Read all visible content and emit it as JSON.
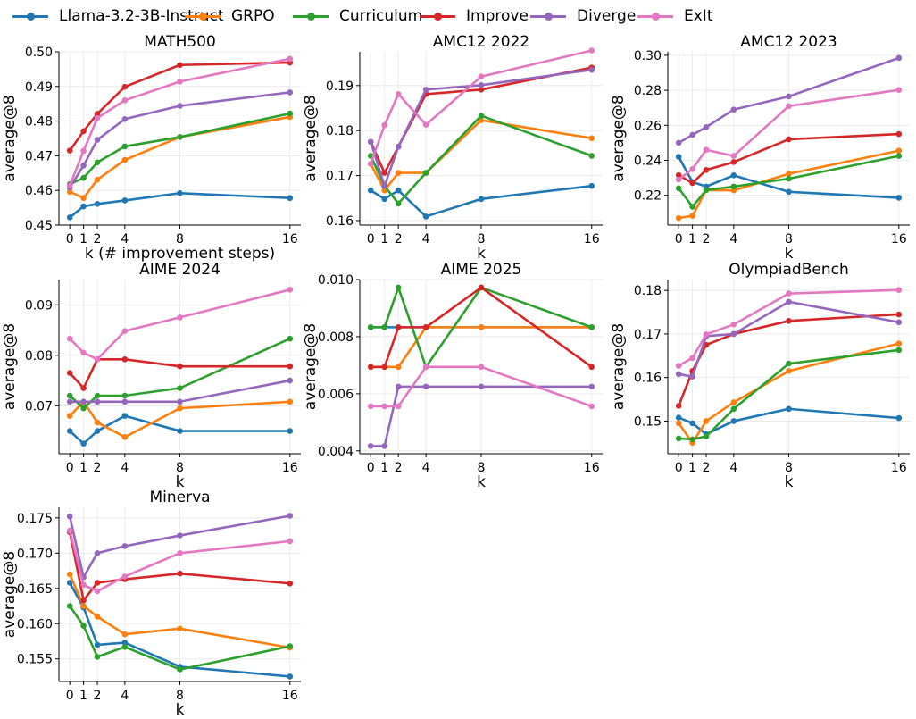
{
  "legend": [
    {
      "name": "Llama-3.2-3B-Instruct",
      "color": "#1f77b4"
    },
    {
      "name": "GRPO",
      "color": "#ff7f0e"
    },
    {
      "name": "Curriculum",
      "color": "#2ca02c"
    },
    {
      "name": "Improve",
      "color": "#d62728"
    },
    {
      "name": "Diverge",
      "color": "#9467bd"
    },
    {
      "name": "ExIt",
      "color": "#e377c2"
    }
  ],
  "chart_data": [
    {
      "type": "line",
      "title": "MATH500",
      "xlabel": "k (# improvement steps)",
      "ylabel": "average@8",
      "x": [
        0,
        1,
        2,
        4,
        8,
        16
      ],
      "xticks": [
        "0",
        "1",
        "2",
        "4",
        "8",
        "16"
      ],
      "ylim": [
        0.45,
        0.5
      ],
      "yticks": [
        "0.45",
        "0.46",
        "0.47",
        "0.48",
        "0.49",
        "0.50"
      ],
      "series": [
        {
          "name": "Llama-3.2-3B-Instruct",
          "values": [
            0.4522,
            0.4554,
            0.4561,
            0.4571,
            0.4592,
            0.4578
          ]
        },
        {
          "name": "GRPO",
          "values": [
            0.4596,
            0.4578,
            0.4631,
            0.4688,
            0.4754,
            0.4812
          ]
        },
        {
          "name": "Curriculum",
          "values": [
            0.4618,
            0.4636,
            0.4681,
            0.4727,
            0.4754,
            0.4822
          ]
        },
        {
          "name": "Improve",
          "values": [
            0.4715,
            0.4771,
            0.4821,
            0.4899,
            0.4962,
            0.4969
          ]
        },
        {
          "name": "Diverge",
          "values": [
            0.4608,
            0.4672,
            0.4746,
            0.4806,
            0.4844,
            0.4883
          ]
        },
        {
          "name": "ExIt",
          "values": [
            0.4614,
            0.4714,
            0.4809,
            0.486,
            0.4914,
            0.498
          ]
        }
      ]
    },
    {
      "type": "line",
      "title": "AMC12 2022",
      "xlabel": "k",
      "ylabel": "average@8",
      "x": [
        0,
        1,
        2,
        4,
        8,
        16
      ],
      "xticks": [
        "0",
        "1",
        "2",
        "4",
        "8",
        "16"
      ],
      "ylim": [
        0.159,
        0.1975
      ],
      "yticks": [
        "0.16",
        "0.17",
        "0.18",
        "0.19"
      ],
      "series": [
        {
          "name": "Llama-3.2-3B-Instruct",
          "values": [
            0.1667,
            0.1648,
            0.1667,
            0.1609,
            0.1648,
            0.1677
          ]
        },
        {
          "name": "GRPO",
          "values": [
            0.1726,
            0.1667,
            0.1706,
            0.1706,
            0.1823,
            0.1783
          ]
        },
        {
          "name": "Curriculum",
          "values": [
            0.1744,
            0.1677,
            0.1638,
            0.1706,
            0.1833,
            0.1744
          ]
        },
        {
          "name": "Improve",
          "values": [
            0.1775,
            0.1706,
            0.1764,
            0.1881,
            0.1891,
            0.194
          ]
        },
        {
          "name": "Diverge",
          "values": [
            0.1775,
            0.1677,
            0.1764,
            0.1891,
            0.1901,
            0.1935
          ]
        },
        {
          "name": "ExIt",
          "values": [
            0.1726,
            0.1812,
            0.1881,
            0.1813,
            0.192,
            0.1978
          ]
        }
      ]
    },
    {
      "type": "line",
      "title": "AMC12 2023",
      "xlabel": "k",
      "ylabel": "average@8",
      "x": [
        0,
        1,
        2,
        4,
        8,
        16
      ],
      "xticks": [
        "0",
        "1",
        "2",
        "4",
        "8",
        "16"
      ],
      "ylim": [
        0.203,
        0.302
      ],
      "yticks": [
        "0.22",
        "0.24",
        "0.26",
        "0.28",
        "0.30"
      ],
      "series": [
        {
          "name": "Llama-3.2-3B-Instruct",
          "values": [
            0.242,
            0.2276,
            0.225,
            0.2314,
            0.222,
            0.2186
          ]
        },
        {
          "name": "GRPO",
          "values": [
            0.207,
            0.2083,
            0.223,
            0.2228,
            0.2323,
            0.2455
          ]
        },
        {
          "name": "Curriculum",
          "values": [
            0.224,
            0.2135,
            0.223,
            0.225,
            0.2295,
            0.2425
          ]
        },
        {
          "name": "Improve",
          "values": [
            0.2315,
            0.227,
            0.2345,
            0.239,
            0.252,
            0.255
          ]
        },
        {
          "name": "Diverge",
          "values": [
            0.25,
            0.2545,
            0.259,
            0.269,
            0.2765,
            0.2985
          ]
        },
        {
          "name": "ExIt",
          "values": [
            0.229,
            0.235,
            0.246,
            0.2425,
            0.271,
            0.2802
          ]
        }
      ]
    },
    {
      "type": "line",
      "title": "AIME 2024",
      "xlabel": "k",
      "ylabel": "average@8",
      "x": [
        0,
        1,
        2,
        4,
        8,
        16
      ],
      "xticks": [
        "0",
        "1",
        "2",
        "4",
        "8",
        "16"
      ],
      "ylim": [
        0.0605,
        0.095
      ],
      "yticks": [
        "0.07",
        "0.08",
        "0.09"
      ],
      "series": [
        {
          "name": "Llama-3.2-3B-Instruct",
          "values": [
            0.065,
            0.0625,
            0.065,
            0.068,
            0.065,
            0.065
          ]
        },
        {
          "name": "GRPO",
          "values": [
            0.068,
            0.0708,
            0.0667,
            0.0638,
            0.0695,
            0.0708
          ]
        },
        {
          "name": "Curriculum",
          "values": [
            0.072,
            0.0695,
            0.072,
            0.072,
            0.0735,
            0.0833
          ]
        },
        {
          "name": "Improve",
          "values": [
            0.0765,
            0.0735,
            0.0792,
            0.0792,
            0.0778,
            0.0778
          ]
        },
        {
          "name": "Diverge",
          "values": [
            0.0708,
            0.0708,
            0.0708,
            0.0708,
            0.0708,
            0.075
          ]
        },
        {
          "name": "ExIt",
          "values": [
            0.0833,
            0.0805,
            0.0792,
            0.0848,
            0.0875,
            0.093
          ]
        }
      ]
    },
    {
      "type": "line",
      "title": "AIME 2025",
      "xlabel": "k",
      "ylabel": "average@8",
      "x": [
        0,
        1,
        2,
        4,
        8,
        16
      ],
      "xticks": [
        "0",
        "1",
        "2",
        "4",
        "8",
        "16"
      ],
      "ylim": [
        0.0039,
        0.01
      ],
      "yticks": [
        "0.004",
        "0.006",
        "0.008",
        "0.010"
      ],
      "series": [
        {
          "name": "Llama-3.2-3B-Instruct",
          "values": [
            0.00833,
            0.00833,
            0.00833,
            0.00833,
            0.00833,
            0.00833
          ]
        },
        {
          "name": "GRPO",
          "values": [
            0.00694,
            0.00694,
            0.00694,
            0.00833,
            0.00833,
            0.00833
          ]
        },
        {
          "name": "Curriculum",
          "values": [
            0.00833,
            0.00833,
            0.00972,
            0.00694,
            0.00972,
            0.00833
          ]
        },
        {
          "name": "Improve",
          "values": [
            0.00694,
            0.00694,
            0.00833,
            0.00833,
            0.00972,
            0.00694
          ]
        },
        {
          "name": "Diverge",
          "values": [
            0.00417,
            0.00417,
            0.00625,
            0.00625,
            0.00625,
            0.00625
          ]
        },
        {
          "name": "ExIt",
          "values": [
            0.00556,
            0.00556,
            0.00556,
            0.00694,
            0.00694,
            0.00556
          ]
        }
      ]
    },
    {
      "type": "line",
      "title": "OlympiadBench",
      "xlabel": "k",
      "ylabel": "average@8",
      "x": [
        0,
        1,
        2,
        4,
        8,
        16
      ],
      "xticks": [
        "0",
        "1",
        "2",
        "4",
        "8",
        "16"
      ],
      "ylim": [
        0.1425,
        0.1825
      ],
      "yticks": [
        "0.15",
        "0.16",
        "0.17",
        "0.18"
      ],
      "series": [
        {
          "name": "Llama-3.2-3B-Instruct",
          "values": [
            0.1508,
            0.1495,
            0.147,
            0.15,
            0.1528,
            0.1507
          ]
        },
        {
          "name": "GRPO",
          "values": [
            0.1495,
            0.145,
            0.15,
            0.1543,
            0.1615,
            0.1678
          ]
        },
        {
          "name": "Curriculum",
          "values": [
            0.146,
            0.1458,
            0.1465,
            0.1528,
            0.1632,
            0.1663
          ]
        },
        {
          "name": "Improve",
          "values": [
            0.1535,
            0.1615,
            0.1675,
            0.17,
            0.173,
            0.1745
          ]
        },
        {
          "name": "Diverge",
          "values": [
            0.1608,
            0.1602,
            0.1695,
            0.17,
            0.1774,
            0.1727
          ]
        },
        {
          "name": "ExIt",
          "values": [
            0.1627,
            0.1645,
            0.1699,
            0.1722,
            0.1793,
            0.1801
          ]
        }
      ]
    },
    {
      "type": "line",
      "title": "Minerva",
      "xlabel": "k",
      "ylabel": "average@8",
      "x": [
        0,
        1,
        2,
        4,
        8,
        16
      ],
      "xticks": [
        "0",
        "1",
        "2",
        "4",
        "8",
        "16"
      ],
      "ylim": [
        0.1518,
        0.1765
      ],
      "yticks": [
        "0.155",
        "0.160",
        "0.165",
        "0.170",
        "0.175"
      ],
      "series": [
        {
          "name": "Llama-3.2-3B-Instruct",
          "values": [
            0.1658,
            0.1623,
            0.157,
            0.1573,
            0.1539,
            0.1525
          ]
        },
        {
          "name": "GRPO",
          "values": [
            0.167,
            0.1625,
            0.161,
            0.1585,
            0.1593,
            0.1566
          ]
        },
        {
          "name": "Curriculum",
          "values": [
            0.1625,
            0.1597,
            0.1553,
            0.1567,
            0.1535,
            0.1568
          ]
        },
        {
          "name": "Improve",
          "values": [
            0.173,
            0.1633,
            0.1658,
            0.1663,
            0.1671,
            0.1657
          ]
        },
        {
          "name": "Diverge",
          "values": [
            0.1752,
            0.1666,
            0.17,
            0.171,
            0.1725,
            0.1753
          ]
        },
        {
          "name": "ExIt",
          "values": [
            0.1732,
            0.1655,
            0.1646,
            0.1667,
            0.17,
            0.1717
          ]
        }
      ]
    }
  ]
}
